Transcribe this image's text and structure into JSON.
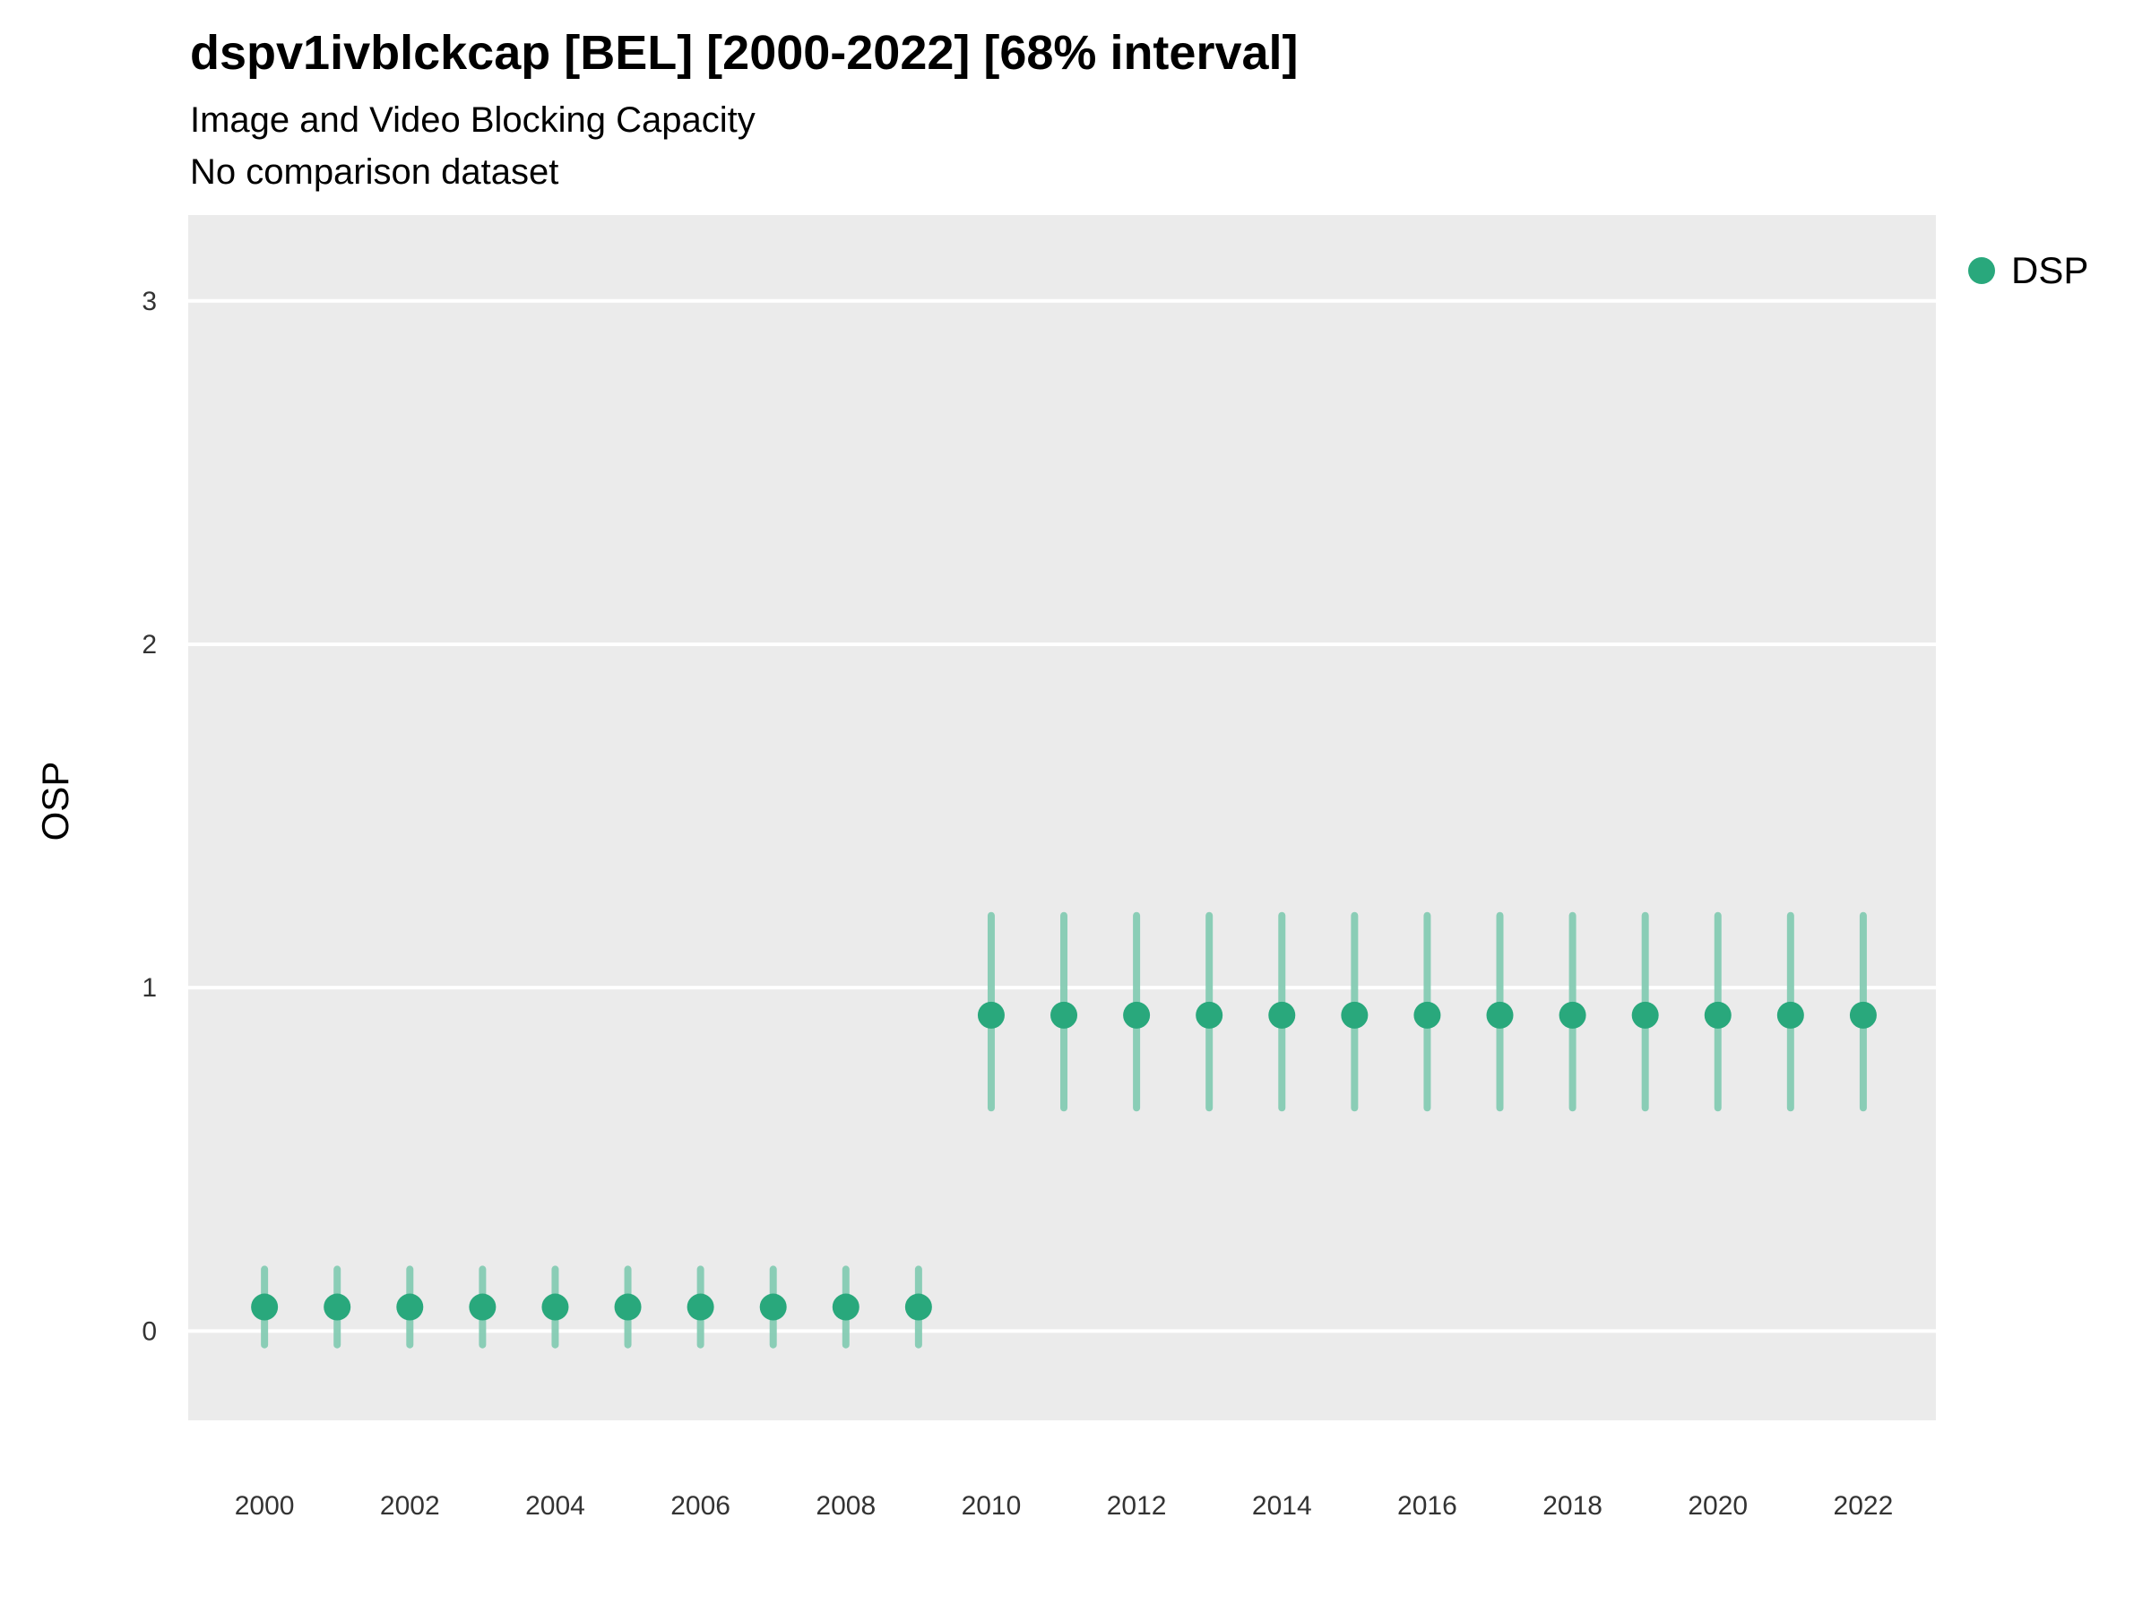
{
  "header": {
    "title": "dspv1ivblckcap [BEL] [2000-2022] [68% interval]",
    "subtitle": "Image and Video Blocking Capacity",
    "subtitle2": "No comparison dataset"
  },
  "axes": {
    "ylabel": "OSP"
  },
  "legend": {
    "label": "DSP"
  },
  "colors": {
    "point": "#29a87c",
    "interval": "#85ccb4",
    "panel": "#ebebeb",
    "grid": "#ffffff",
    "tick_text": "#333333"
  },
  "chart_data": {
    "type": "scatter",
    "title": "dspv1ivblckcap [BEL] [2000-2022] [68% interval]",
    "subtitle": "Image and Video Blocking Capacity",
    "note": "No comparison dataset",
    "xlabel": "",
    "ylabel": "OSP",
    "legend_position": "right",
    "grid": "on",
    "xlim": [
      1998.95,
      2023.0
    ],
    "ylim": [
      -0.26,
      3.25
    ],
    "xticks": [
      2000,
      2002,
      2004,
      2006,
      2008,
      2010,
      2012,
      2014,
      2016,
      2018,
      2020,
      2022
    ],
    "yticks": [
      0,
      1,
      2,
      3
    ],
    "series": [
      {
        "name": "DSP",
        "x": [
          2000,
          2001,
          2002,
          2003,
          2004,
          2005,
          2006,
          2007,
          2008,
          2009,
          2010,
          2011,
          2012,
          2013,
          2014,
          2015,
          2016,
          2017,
          2018,
          2019,
          2020,
          2021,
          2022
        ],
        "y": [
          0.07,
          0.07,
          0.07,
          0.07,
          0.07,
          0.07,
          0.07,
          0.07,
          0.07,
          0.07,
          0.92,
          0.92,
          0.92,
          0.92,
          0.92,
          0.92,
          0.92,
          0.92,
          0.92,
          0.92,
          0.92,
          0.92,
          0.92
        ],
        "low": [
          -0.04,
          -0.04,
          -0.04,
          -0.04,
          -0.04,
          -0.04,
          -0.04,
          -0.04,
          -0.04,
          -0.04,
          0.65,
          0.65,
          0.65,
          0.65,
          0.65,
          0.65,
          0.65,
          0.65,
          0.65,
          0.65,
          0.65,
          0.65,
          0.65
        ],
        "high": [
          0.18,
          0.18,
          0.18,
          0.18,
          0.18,
          0.18,
          0.18,
          0.18,
          0.18,
          0.18,
          1.21,
          1.21,
          1.21,
          1.21,
          1.21,
          1.21,
          1.21,
          1.21,
          1.21,
          1.21,
          1.21,
          1.21,
          1.21
        ]
      }
    ]
  }
}
